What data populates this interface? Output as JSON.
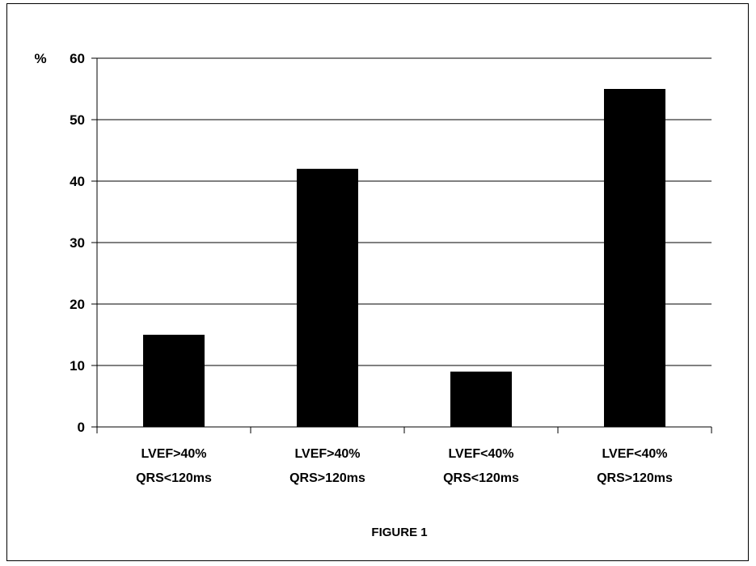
{
  "chart_data": {
    "type": "bar",
    "title": "",
    "caption": "FIGURE 1",
    "ylabel": "%",
    "xlabel": "",
    "ylim": [
      0,
      60
    ],
    "yticks": [
      0,
      10,
      20,
      30,
      40,
      50,
      60
    ],
    "grid": true,
    "categories": [
      [
        "LVEF>40%",
        "QRS<120ms"
      ],
      [
        "LVEF>40%",
        "QRS>120ms"
      ],
      [
        "LVEF<40%",
        "QRS<120ms"
      ],
      [
        "LVEF<40%",
        "QRS>120ms"
      ]
    ],
    "values": [
      15,
      42,
      9,
      55
    ],
    "bar_color": "#000000"
  }
}
